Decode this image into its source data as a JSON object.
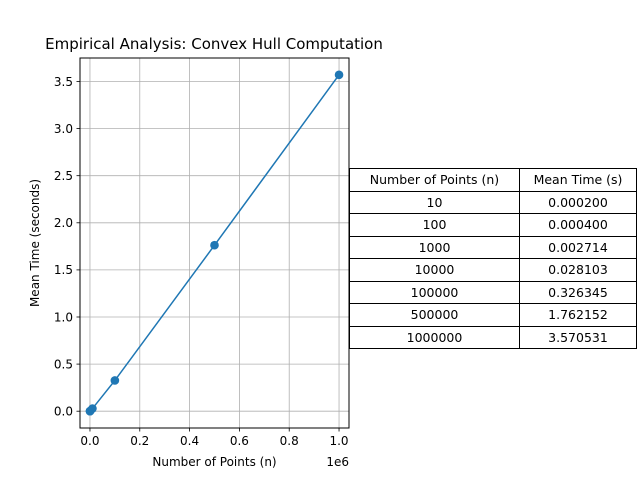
{
  "chart_data": {
    "type": "line",
    "title": "Empirical Analysis: Convex Hull Computation",
    "xlabel": "Number of Points (n)",
    "ylabel": "Mean Time (seconds)",
    "x_offset_label": "1e6",
    "x": [
      10,
      100,
      1000,
      10000,
      100000,
      500000,
      1000000
    ],
    "series": [
      {
        "values": [
          0.0002,
          0.0004,
          0.002714,
          0.028103,
          0.326345,
          1.762152,
          3.570531
        ]
      }
    ],
    "xlim": [
      -40000,
      1040000
    ],
    "ylim": [
      -0.1783,
      3.7493
    ],
    "x_ticks": [
      0,
      200000,
      400000,
      600000,
      800000,
      1000000
    ],
    "x_tick_labels": [
      "0.0",
      "0.2",
      "0.4",
      "0.6",
      "0.8",
      "1.0"
    ],
    "y_ticks": [
      0,
      0.5,
      1.0,
      1.5,
      2.0,
      2.5,
      3.0,
      3.5
    ],
    "y_tick_labels": [
      "0.0",
      "0.5",
      "1.0",
      "1.5",
      "2.0",
      "2.5",
      "3.0",
      "3.5"
    ],
    "grid": true,
    "line_color": "#1f77b4",
    "marker": "circle"
  },
  "table": {
    "headers": [
      "Number of Points (n)",
      "Mean Time (s)"
    ],
    "rows": [
      [
        "10",
        "0.000200"
      ],
      [
        "100",
        "0.000400"
      ],
      [
        "1000",
        "0.002714"
      ],
      [
        "10000",
        "0.028103"
      ],
      [
        "100000",
        "0.326345"
      ],
      [
        "500000",
        "1.762152"
      ],
      [
        "1000000",
        "3.570531"
      ]
    ]
  }
}
